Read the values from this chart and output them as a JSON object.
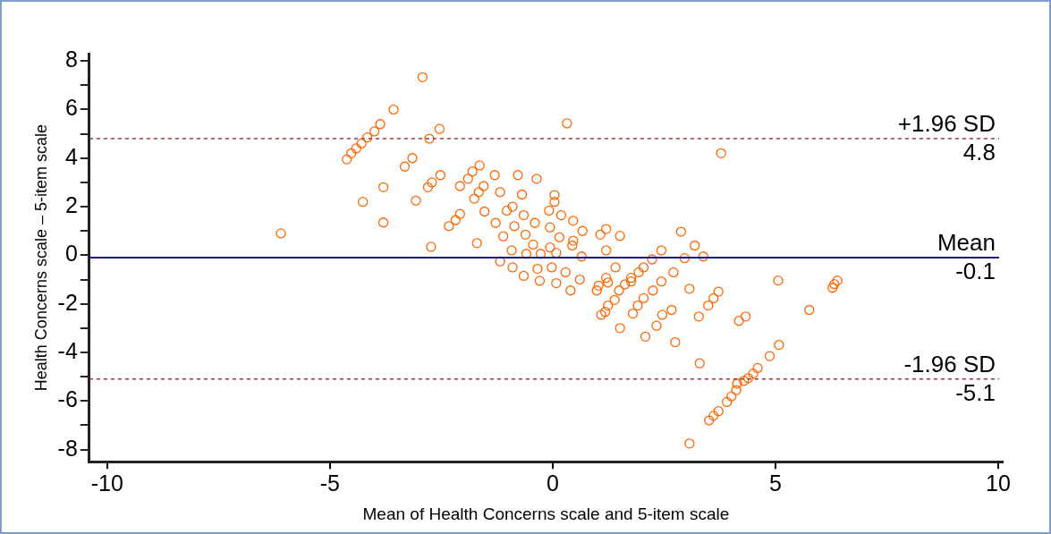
{
  "chart_data": {
    "type": "scatter",
    "xlabel": "Mean of Health Concerns scale and 5-item scale",
    "ylabel": "Health Concerns scale – 5-item scale",
    "xlim": [
      -10.4,
      10.1
    ],
    "ylim": [
      -8.5,
      8.3
    ],
    "xticks": [
      -10,
      -5,
      0,
      5,
      10
    ],
    "yticks": [
      -8,
      {
        "value": -7,
        "label": null
      },
      -6,
      {
        "value": -5,
        "label": null
      },
      -4,
      {
        "value": -3,
        "label": null
      },
      -2,
      {
        "value": -1,
        "label": null
      },
      0,
      {
        "value": 1,
        "label": null
      },
      2,
      {
        "value": 3,
        "label": null
      },
      4,
      {
        "value": 5,
        "label": null
      },
      6,
      {
        "value": 7,
        "label": null
      },
      8
    ],
    "marker": "circle",
    "annotations": [
      {
        "text": "4.8",
        "y": 4.8
      },
      {
        "text": "-0.1",
        "y": -0.1
      },
      {
        "text": "-5.1",
        "y": -5.1
      }
    ],
    "ref_lines": [
      {
        "axis": "y",
        "value": 4.8,
        "label": "+1.96 SD",
        "color": "#993333",
        "line_style": "dashed"
      },
      {
        "axis": "y",
        "value": -0.1,
        "label": "Mean",
        "color": "#1a1a8c",
        "line_style": "solid"
      },
      {
        "axis": "y",
        "value": -5.1,
        "label": "-1.96 SD",
        "color": "#993333",
        "line_style": "dashed"
      }
    ],
    "series": [
      {
        "color": "#ff6600",
        "x": [
          -6.1,
          -2.92,
          -3.57,
          -3.87,
          -4.0,
          -4.16,
          -4.29,
          -4.41,
          -4.52,
          -4.62,
          -2.54,
          -2.77,
          -4.26,
          -3.8,
          -3.8,
          -3.32,
          -3.15,
          -3.07,
          -2.8,
          -2.71,
          -2.52,
          -2.73,
          -1.7,
          -2.33,
          -2.18,
          -2.08,
          -2.08,
          -1.9,
          -1.8,
          -1.64,
          -1.3,
          -0.78,
          -0.36,
          -1.55,
          -1.66,
          -1.76,
          -1.18,
          -0.69,
          0.04,
          0.04,
          -1.53,
          -1.28,
          -0.9,
          -1.03,
          -0.65,
          -0.86,
          -0.4,
          -0.08,
          0.19,
          0.46,
          0.67,
          -0.06,
          1.2,
          1.07,
          1.51,
          -1.11,
          -0.61,
          0.15,
          0.46,
          -0.44,
          0.44,
          -0.92,
          -0.06,
          1.2,
          -0.27,
          0.08,
          0.65,
          -1.18,
          -0.59,
          -0.9,
          -0.34,
          -0.02,
          0.29,
          -0.65,
          -0.29,
          0.08,
          0.4,
          0.61,
          2.88,
          3.19,
          3.38,
          2.96,
          2.44,
          2.23,
          1.41,
          1.2,
          1.03,
          0.99,
          2.04,
          1.93,
          1.76,
          1.62,
          1.49,
          2.71,
          2.44,
          2.25,
          2.04,
          1.91,
          1.8,
          1.39,
          1.24,
          1.09,
          3.07,
          3.72,
          3.61,
          3.49,
          2.67,
          2.46,
          2.33,
          2.08,
          1.51,
          2.75,
          3.28,
          4.18,
          4.33,
          3.3,
          5.06,
          6.39,
          6.32,
          6.28,
          5.76,
          5.08,
          4.87,
          4.6,
          4.5,
          4.39,
          4.29,
          4.14,
          4.12,
          4.01,
          3.91,
          3.72,
          3.61,
          3.51,
          3.07,
          1.18,
          1.24,
          1.76,
          3.78,
          0.32
        ],
        "values": [
          0.9,
          7.33,
          6.0,
          5.4,
          5.1,
          4.85,
          4.6,
          4.4,
          4.2,
          3.95,
          5.2,
          4.8,
          2.2,
          2.8,
          1.35,
          3.65,
          4.0,
          2.25,
          2.8,
          3.0,
          3.3,
          0.35,
          0.5,
          1.2,
          1.45,
          1.7,
          2.85,
          3.15,
          3.45,
          3.7,
          3.3,
          3.3,
          3.15,
          2.85,
          2.6,
          2.33,
          2.6,
          2.5,
          2.48,
          2.2,
          1.8,
          1.33,
          2.0,
          1.84,
          1.65,
          1.2,
          1.33,
          1.84,
          1.65,
          1.42,
          1.0,
          1.15,
          1.08,
          0.85,
          0.8,
          0.78,
          0.85,
          0.74,
          0.6,
          0.44,
          0.4,
          0.2,
          0.32,
          0.2,
          0.06,
          0.1,
          -0.05,
          -0.25,
          0.06,
          -0.5,
          -0.56,
          -0.5,
          -0.7,
          -0.85,
          -1.05,
          -1.15,
          -1.45,
          -1.0,
          0.97,
          0.4,
          -0.05,
          -0.12,
          0.2,
          -0.17,
          -0.5,
          -0.93,
          -1.25,
          -1.45,
          -0.5,
          -0.7,
          -0.93,
          -1.2,
          -1.45,
          -0.7,
          -1.08,
          -1.45,
          -1.77,
          -2.07,
          -2.4,
          -1.84,
          -2.07,
          -2.45,
          -1.38,
          -1.5,
          -1.77,
          -2.07,
          -2.25,
          -2.45,
          -2.9,
          -3.35,
          -3.0,
          -3.58,
          -2.52,
          -2.7,
          -2.52,
          -4.45,
          -1.04,
          -1.04,
          -1.19,
          -1.34,
          -2.25,
          -3.69,
          -4.15,
          -4.64,
          -4.87,
          -5.06,
          -5.17,
          -5.28,
          -5.55,
          -5.81,
          -6.04,
          -6.42,
          -6.61,
          -6.8,
          -7.75,
          -2.33,
          -1.12,
          -1.08,
          4.2,
          5.43
        ]
      }
    ]
  }
}
